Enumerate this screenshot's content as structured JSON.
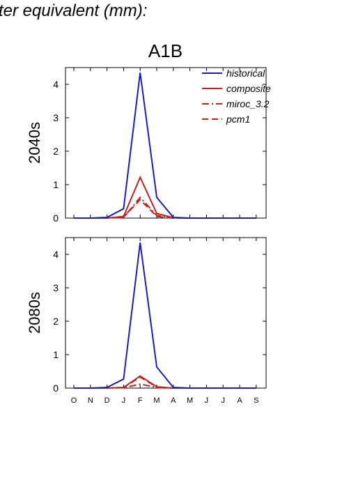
{
  "page": {
    "title": "ter equivalent (mm):"
  },
  "chart_data": {
    "type": "line",
    "scenario_title": "A1B",
    "months": [
      "O",
      "N",
      "D",
      "J",
      "F",
      "M",
      "A",
      "M",
      "J",
      "J",
      "A",
      "S"
    ],
    "ylim": [
      0,
      4.5
    ],
    "yticks": [
      0,
      1,
      2,
      3,
      4
    ],
    "legend_position": "top-right",
    "colors": {
      "historical": "#1c1cb4",
      "scenario": "#c02020"
    },
    "legend": [
      {
        "name": "historical",
        "style": "solid",
        "color": "#1c1cb4"
      },
      {
        "name": "composite",
        "style": "solid",
        "color": "#c02020"
      },
      {
        "name": "miroc_3.2",
        "style": "dashdot",
        "color": "#c02020"
      },
      {
        "name": "pcm1",
        "style": "dash",
        "color": "#c02020"
      }
    ],
    "panels": [
      {
        "ylabel": "2040s",
        "series": [
          {
            "name": "historical",
            "values": [
              0,
              0,
              0.02,
              0.28,
              4.35,
              0.62,
              0.02,
              0,
              0,
              0,
              0,
              0
            ]
          },
          {
            "name": "composite",
            "values": [
              0,
              0,
              0,
              0.05,
              1.22,
              0.14,
              0.01,
              0,
              0,
              0,
              0,
              0
            ]
          },
          {
            "name": "miroc_3.2",
            "values": [
              0,
              0,
              0,
              0.02,
              0.62,
              0.08,
              0,
              0,
              0,
              0,
              0,
              0
            ]
          },
          {
            "name": "pcm1",
            "values": [
              0,
              0,
              0,
              0.03,
              0.55,
              0.05,
              0,
              0,
              0,
              0,
              0,
              0
            ]
          }
        ]
      },
      {
        "ylabel": "2080s",
        "series": [
          {
            "name": "historical",
            "values": [
              0,
              0,
              0.02,
              0.27,
              4.35,
              0.63,
              0.02,
              0,
              0,
              0,
              0,
              0
            ]
          },
          {
            "name": "composite",
            "values": [
              0,
              0,
              0,
              0.02,
              0.36,
              0.04,
              0,
              0,
              0,
              0,
              0,
              0
            ]
          },
          {
            "name": "miroc_3.2",
            "values": [
              0,
              0,
              0,
              0.01,
              0.12,
              0.02,
              0,
              0,
              0,
              0,
              0,
              0
            ]
          },
          {
            "name": "pcm1",
            "values": [
              0,
              0,
              0,
              0.02,
              0.33,
              0.03,
              0,
              0,
              0,
              0,
              0,
              0
            ]
          }
        ]
      }
    ]
  }
}
